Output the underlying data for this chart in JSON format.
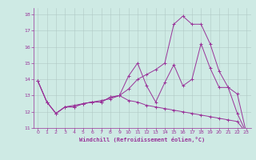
{
  "title": "",
  "xlabel": "Windchill (Refroidissement éolien,°C)",
  "ylabel": "",
  "background_color": "#ceeae4",
  "line_color": "#993399",
  "grid_color": "#b0c8c4",
  "xlim": [
    -0.5,
    23.5
  ],
  "ylim": [
    11,
    18.4
  ],
  "xticks": [
    0,
    1,
    2,
    3,
    4,
    5,
    6,
    7,
    8,
    9,
    10,
    11,
    12,
    13,
    14,
    15,
    16,
    17,
    18,
    19,
    20,
    21,
    22,
    23
  ],
  "yticks": [
    11,
    12,
    13,
    14,
    15,
    16,
    17,
    18
  ],
  "line1_x": [
    0,
    1,
    2,
    3,
    4,
    5,
    6,
    7,
    8,
    9,
    10,
    11,
    12,
    13,
    14,
    15,
    16,
    17,
    18,
    19,
    20,
    21,
    22,
    23
  ],
  "line1_y": [
    13.9,
    12.6,
    11.9,
    12.3,
    12.3,
    12.5,
    12.6,
    12.6,
    12.9,
    13.0,
    14.2,
    15.0,
    13.6,
    12.6,
    13.8,
    14.9,
    13.6,
    14.0,
    16.2,
    14.7,
    13.5,
    13.5,
    11.9,
    10.7
  ],
  "line2_x": [
    0,
    1,
    2,
    3,
    4,
    5,
    6,
    7,
    8,
    9,
    10,
    11,
    12,
    13,
    14,
    15,
    16,
    17,
    18,
    19,
    20,
    21,
    22,
    23
  ],
  "line2_y": [
    13.9,
    12.6,
    11.9,
    12.3,
    12.3,
    12.5,
    12.6,
    12.6,
    12.9,
    13.0,
    12.7,
    12.6,
    12.4,
    12.3,
    12.2,
    12.1,
    12.0,
    11.9,
    11.8,
    11.7,
    11.6,
    11.5,
    11.4,
    10.7
  ],
  "line3_x": [
    0,
    1,
    2,
    3,
    4,
    5,
    6,
    7,
    8,
    9,
    10,
    11,
    12,
    13,
    14,
    15,
    16,
    17,
    18,
    19,
    20,
    21,
    22,
    23
  ],
  "line3_y": [
    13.9,
    12.6,
    11.9,
    12.3,
    12.4,
    12.5,
    12.6,
    12.7,
    12.8,
    13.0,
    13.4,
    14.0,
    14.3,
    14.6,
    15.0,
    17.4,
    17.9,
    17.4,
    17.4,
    16.2,
    14.5,
    13.5,
    13.1,
    10.7
  ],
  "tick_fontsize": 4.5,
  "xlabel_fontsize": 5.0,
  "marker_size": 2.5,
  "line_width": 0.7
}
